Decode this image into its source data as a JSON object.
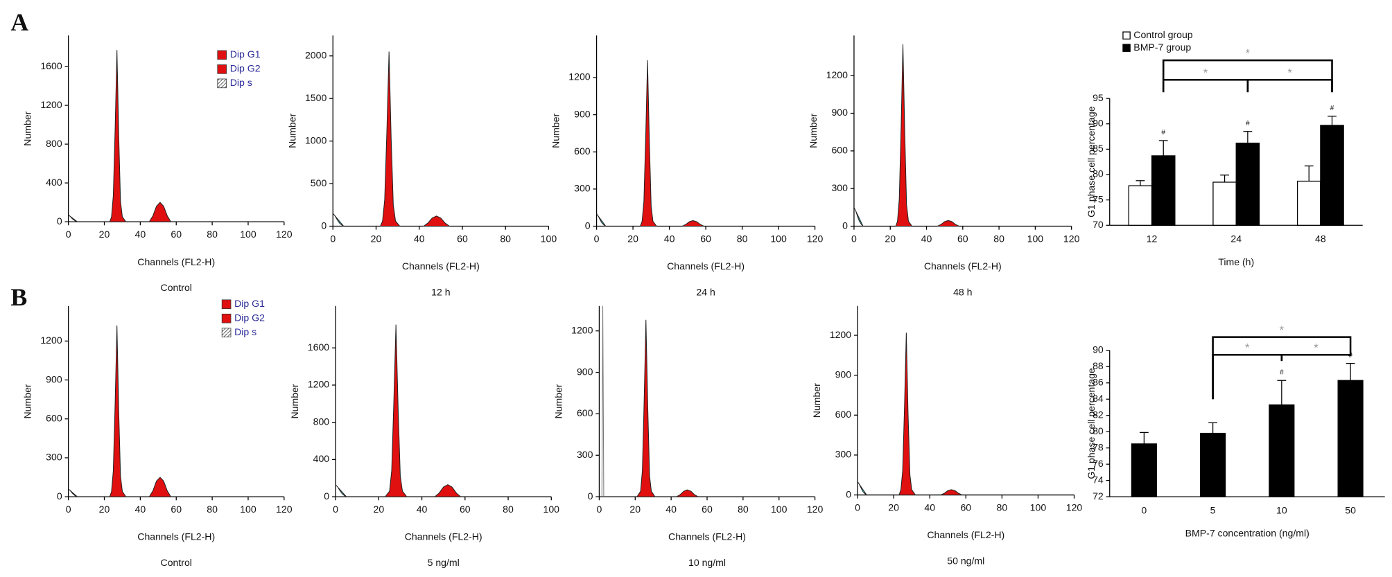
{
  "panel_labels": [
    "A",
    "B"
  ],
  "chart_data": [
    {
      "type": "histogram",
      "caption": "Control",
      "xlabel": "Channels (FL2-H)",
      "ylabel": "Number",
      "xlim": [
        0,
        120
      ],
      "xticks": [
        0,
        20,
        40,
        60,
        80,
        100,
        120
      ],
      "ylim": [
        0,
        1920
      ],
      "yticks": [
        0,
        400,
        800,
        1200,
        1600
      ],
      "legend": [
        {
          "name": "Dip G1",
          "color": "#e01010"
        },
        {
          "name": "Dip G2",
          "color": "#e01010"
        },
        {
          "name": "Dip s",
          "color": "#ffffff"
        }
      ],
      "series": [
        {
          "color": "#33cccc",
          "x": [
            0,
            1,
            2,
            3,
            4,
            5
          ],
          "values": [
            70,
            56,
            35,
            18,
            7,
            0
          ]
        },
        {
          "color": "#e01010",
          "x": [
            23,
            24,
            25,
            26,
            27,
            28,
            29,
            30,
            32
          ],
          "values": [
            0,
            50,
            270,
            970,
            1770,
            890,
            210,
            50,
            0
          ]
        },
        {
          "color": "#e01010",
          "x": [
            45,
            47,
            49,
            51,
            53,
            55,
            57
          ],
          "values": [
            0,
            60,
            160,
            200,
            160,
            60,
            0
          ]
        }
      ]
    },
    {
      "type": "histogram",
      "caption": "12 h",
      "xlabel": "Channels (FL2-H)",
      "ylabel": "Number",
      "xlim": [
        0,
        100
      ],
      "xticks": [
        0,
        20,
        40,
        60,
        80,
        100
      ],
      "ylim": [
        0,
        2240
      ],
      "yticks": [
        0,
        500,
        1000,
        1500,
        2000
      ],
      "series": [
        {
          "color": "#33cccc",
          "x": [
            0,
            1,
            2,
            3,
            4,
            5
          ],
          "values": [
            150,
            120,
            75,
            38,
            15,
            0
          ]
        },
        {
          "color": "#e01010",
          "x": [
            22,
            23,
            24,
            25,
            26,
            27,
            28,
            29,
            31
          ],
          "values": [
            0,
            60,
            310,
            1130,
            2050,
            1030,
            250,
            60,
            0
          ]
        },
        {
          "color": "#e01010",
          "x": [
            42,
            44,
            46,
            48,
            50,
            52,
            54
          ],
          "values": [
            0,
            36,
            96,
            120,
            96,
            36,
            0
          ]
        }
      ]
    },
    {
      "type": "histogram",
      "caption": "24 h",
      "xlabel": "Channels (FL2-H)",
      "ylabel": "Number",
      "xlim": [
        0,
        120
      ],
      "xticks": [
        0,
        20,
        40,
        60,
        80,
        100,
        120
      ],
      "ylim": [
        0,
        1540
      ],
      "yticks": [
        0,
        300,
        600,
        900,
        1200
      ],
      "series": [
        {
          "color": "#33cccc",
          "x": [
            0,
            1,
            2,
            3,
            4,
            5
          ],
          "values": [
            100,
            80,
            50,
            25,
            10,
            0
          ]
        },
        {
          "color": "#e01010",
          "x": [
            24,
            25,
            26,
            27,
            28,
            29,
            30,
            31,
            33
          ],
          "values": [
            0,
            40,
            200,
            740,
            1340,
            670,
            160,
            40,
            0
          ]
        },
        {
          "color": "#e01010",
          "x": [
            47,
            49,
            51,
            53,
            55,
            57,
            59
          ],
          "values": [
            0,
            14,
            36,
            45,
            36,
            14,
            0
          ]
        }
      ]
    },
    {
      "type": "histogram",
      "caption": "48 h",
      "xlabel": "Channels (FL2-H)",
      "ylabel": "Number",
      "xlim": [
        0,
        120
      ],
      "xticks": [
        0,
        20,
        40,
        60,
        80,
        100,
        120
      ],
      "ylim": [
        0,
        1520
      ],
      "yticks": [
        0,
        300,
        600,
        900,
        1200
      ],
      "series": [
        {
          "color": "#33cccc",
          "x": [
            0,
            1,
            2,
            3,
            4,
            5
          ],
          "values": [
            150,
            120,
            75,
            38,
            15,
            0
          ]
        },
        {
          "color": "#e01010",
          "x": [
            23,
            24,
            25,
            26,
            27,
            28,
            29,
            30,
            32
          ],
          "values": [
            0,
            40,
            220,
            800,
            1450,
            730,
            170,
            40,
            0
          ]
        },
        {
          "color": "#e01010",
          "x": [
            46,
            48,
            50,
            52,
            54,
            56,
            58
          ],
          "values": [
            0,
            14,
            36,
            45,
            36,
            14,
            0
          ]
        }
      ]
    },
    {
      "type": "bar",
      "xlabel": "Time (h)",
      "ylabel": "G1 phase cell percentage",
      "categories": [
        "12",
        "24",
        "48"
      ],
      "ylim": [
        70,
        95
      ],
      "yticks": [
        70,
        75,
        80,
        85,
        90,
        95
      ],
      "series": [
        {
          "name": "Control group",
          "color": "#ffffff",
          "values": [
            77.8,
            78.5,
            78.7
          ],
          "errors": [
            1.0,
            1.4,
            3.0
          ]
        },
        {
          "name": "BMP-7 group",
          "color": "#000000",
          "values": [
            83.7,
            86.2,
            89.7
          ],
          "errors": [
            3.0,
            2.3,
            1.8
          ],
          "marks": [
            "#",
            "#",
            "#"
          ]
        }
      ],
      "brackets": [
        {
          "label": "*",
          "between": [
            "12",
            "48"
          ]
        },
        {
          "label": "*",
          "between": [
            "12",
            "24"
          ]
        },
        {
          "label": "*",
          "between": [
            "24",
            "48"
          ]
        }
      ]
    },
    {
      "type": "histogram",
      "caption": "Control",
      "xlabel": "Channels (FL2-H)",
      "ylabel": "Number",
      "xlim": [
        0,
        120
      ],
      "xticks": [
        0,
        20,
        40,
        60,
        80,
        100,
        120
      ],
      "ylim": [
        0,
        1470
      ],
      "yticks": [
        0,
        300,
        600,
        900,
        1200
      ],
      "legend": [
        {
          "name": "Dip G1",
          "color": "#e01010"
        },
        {
          "name": "Dip G2",
          "color": "#e01010"
        },
        {
          "name": "Dip s",
          "color": "#ffffff"
        }
      ],
      "series": [
        {
          "color": "#33cccc",
          "x": [
            0,
            1,
            2,
            3,
            4,
            5
          ],
          "values": [
            60,
            48,
            30,
            15,
            6,
            0
          ]
        },
        {
          "color": "#e01010",
          "x": [
            23,
            24,
            25,
            26,
            27,
            28,
            29,
            30,
            32
          ],
          "values": [
            0,
            40,
            200,
            730,
            1320,
            660,
            160,
            40,
            0
          ]
        },
        {
          "color": "#e01010",
          "x": [
            45,
            47,
            49,
            51,
            53,
            55,
            57
          ],
          "values": [
            0,
            45,
            120,
            150,
            120,
            45,
            0
          ]
        }
      ]
    },
    {
      "type": "histogram",
      "caption": "5 ng/ml",
      "xlabel": "Channels (FL2-H)",
      "ylabel": "Number",
      "xlim": [
        0,
        100
      ],
      "xticks": [
        0,
        20,
        40,
        60,
        80,
        100
      ],
      "ylim": [
        0,
        2050
      ],
      "yticks": [
        0,
        400,
        800,
        1200,
        1600
      ],
      "series": [
        {
          "color": "#33cccc",
          "x": [
            0,
            1,
            2,
            3,
            4,
            5
          ],
          "values": [
            130,
            104,
            65,
            33,
            13,
            0
          ]
        },
        {
          "color": "#e01010",
          "x": [
            23,
            25,
            26,
            27,
            28,
            29,
            30,
            31,
            33
          ],
          "values": [
            0,
            60,
            280,
            1020,
            1850,
            930,
            220,
            60,
            0
          ]
        },
        {
          "color": "#e01010",
          "x": [
            46,
            48,
            50,
            52,
            54,
            56,
            58
          ],
          "values": [
            0,
            39,
            104,
            130,
            104,
            39,
            0
          ]
        }
      ]
    },
    {
      "type": "histogram",
      "caption": "10 ng/ml",
      "xlabel": "Channels (FL2-H)",
      "ylabel": "Number",
      "xlim": [
        0,
        120
      ],
      "xticks": [
        0,
        20,
        40,
        60,
        80,
        100,
        120
      ],
      "ylim": [
        0,
        1380
      ],
      "yticks": [
        0,
        300,
        600,
        900,
        1200
      ],
      "series": [
        {
          "color": "#777777",
          "style": "line",
          "x": [
            1.5,
            2,
            2.5
          ],
          "values": [
            0,
            1380,
            0
          ]
        },
        {
          "color": "#e01010",
          "x": [
            21,
            23,
            24,
            25,
            26,
            27,
            28,
            29,
            31
          ],
          "values": [
            0,
            40,
            190,
            700,
            1280,
            640,
            150,
            40,
            0
          ]
        },
        {
          "color": "#e01010",
          "x": [
            43,
            45,
            47,
            49,
            51,
            53,
            55
          ],
          "values": [
            0,
            15,
            40,
            50,
            40,
            15,
            0
          ]
        }
      ]
    },
    {
      "type": "histogram",
      "caption": "50 ng/ml",
      "xlabel": "Channels (FL2-H)",
      "ylabel": "Number",
      "xlim": [
        0,
        120
      ],
      "xticks": [
        0,
        20,
        40,
        60,
        80,
        100,
        120
      ],
      "ylim": [
        0,
        1420
      ],
      "yticks": [
        0,
        300,
        600,
        900,
        1200
      ],
      "series": [
        {
          "color": "#33cccc",
          "x": [
            0,
            1,
            2,
            3,
            4,
            5
          ],
          "values": [
            100,
            80,
            50,
            25,
            10,
            0
          ]
        },
        {
          "color": "#e01010",
          "x": [
            23,
            24,
            25,
            26,
            27,
            28,
            29,
            30,
            32
          ],
          "values": [
            0,
            40,
            180,
            670,
            1220,
            610,
            150,
            40,
            0
          ]
        },
        {
          "color": "#e01010",
          "x": [
            46,
            48,
            50,
            52,
            54,
            56,
            58
          ],
          "values": [
            0,
            12,
            32,
            40,
            32,
            12,
            0
          ]
        }
      ]
    },
    {
      "type": "bar",
      "xlabel": "BMP-7 concentration (ng/ml)",
      "ylabel": "G1 phase cell percentage",
      "categories": [
        "0",
        "5",
        "10",
        "50"
      ],
      "ylim": [
        72,
        90
      ],
      "yticks": [
        72,
        74,
        76,
        78,
        80,
        82,
        84,
        86,
        88,
        90
      ],
      "series": [
        {
          "color": "#000000",
          "values": [
            78.5,
            79.8,
            83.3,
            86.3
          ],
          "errors": [
            1.4,
            1.3,
            3.0,
            2.1
          ],
          "marks": [
            null,
            null,
            "#",
            "#"
          ]
        }
      ],
      "brackets": [
        {
          "label": "*",
          "between": [
            "5",
            "50"
          ]
        },
        {
          "label": "*",
          "between": [
            "5",
            "10"
          ]
        },
        {
          "label": "*",
          "between": [
            "10",
            "50"
          ]
        }
      ]
    }
  ]
}
